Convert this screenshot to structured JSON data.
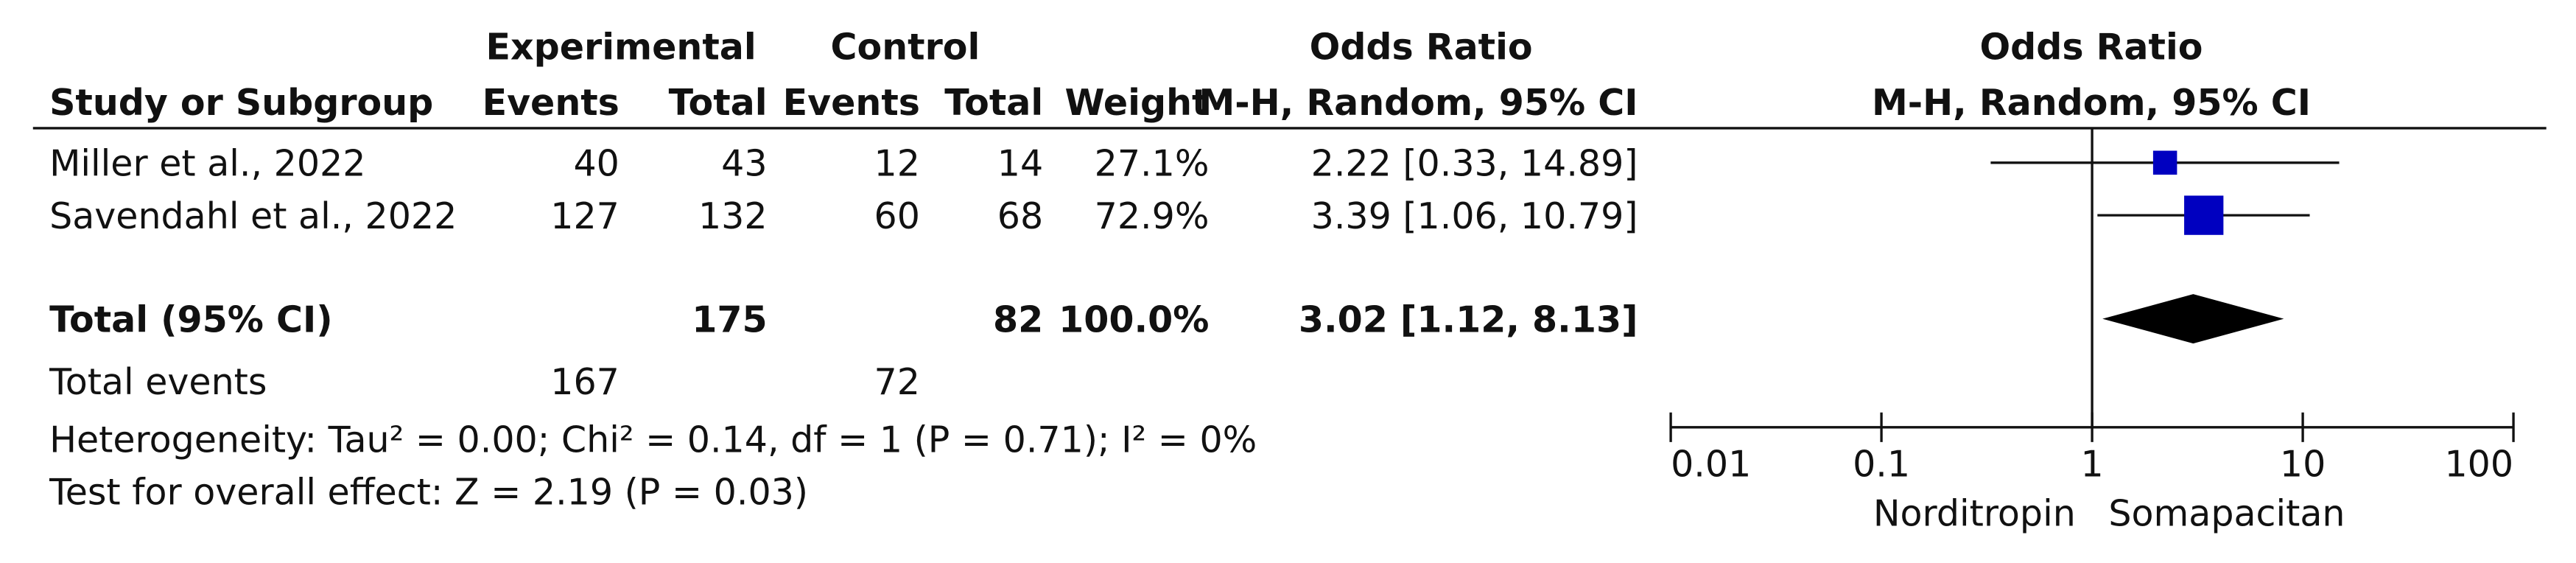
{
  "chart_data": {
    "type": "forest",
    "header": {
      "group_experimental": "Experimental",
      "group_control": "Control",
      "group_or": "Odds Ratio",
      "study": "Study or Subgroup",
      "events_e": "Events",
      "total_e": "Total",
      "events_c": "Events",
      "total_c": "Total",
      "weight": "Weight",
      "method": "M-H, Random, 95% CI",
      "plot_title": "Odds Ratio",
      "plot_method": "M-H, Random, 95% CI"
    },
    "studies": [
      {
        "name": "Miller et al., 2022",
        "events_e": 40,
        "total_e": 43,
        "events_c": 12,
        "total_c": 14,
        "weight": 27.1,
        "weight_label": "27.1%",
        "or": 2.22,
        "ci_low": 0.33,
        "ci_high": 14.89,
        "or_label": "2.22 [0.33, 14.89]"
      },
      {
        "name": "Savendahl et al., 2022",
        "events_e": 127,
        "total_e": 132,
        "events_c": 60,
        "total_c": 68,
        "weight": 72.9,
        "weight_label": "72.9%",
        "or": 3.39,
        "ci_low": 1.06,
        "ci_high": 10.79,
        "or_label": "3.39 [1.06, 10.79]"
      }
    ],
    "total": {
      "name": "Total (95% CI)",
      "total_e": 175,
      "total_c": 82,
      "weight": 100.0,
      "weight_label": "100.0%",
      "or": 3.02,
      "ci_low": 1.12,
      "ci_high": 8.13,
      "or_label": "3.02 [1.12, 8.13]"
    },
    "total_events": {
      "name": "Total events",
      "events_e": 167,
      "events_c": 72
    },
    "heterogeneity": "Heterogeneity: Tau² = 0.00; Chi² = 0.14, df = 1 (P = 0.71); I² = 0%",
    "overall_effect": "Test for overall effect: Z = 2.19 (P = 0.03)",
    "log": true,
    "xlim": [
      0.01,
      100
    ],
    "xticks": [
      0.01,
      0.1,
      1,
      10,
      100
    ],
    "null_value": 1,
    "xlabel_left": "Norditropin",
    "xlabel_right": "Somapacitan",
    "color": "#0000c0",
    "total_color": "#000000"
  }
}
